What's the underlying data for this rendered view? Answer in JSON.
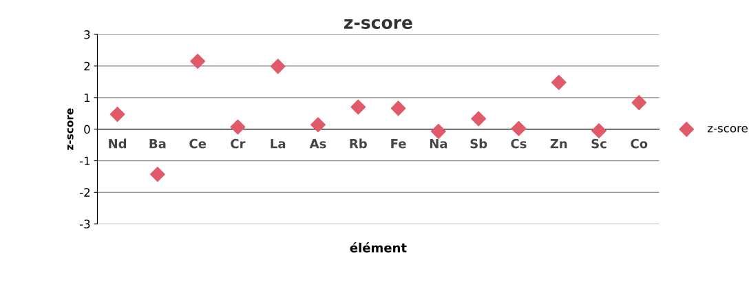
{
  "chart_data": {
    "type": "scatter",
    "title": "z-score",
    "xlabel": "élément",
    "ylabel": "z-score",
    "categories": [
      "Nd",
      "Ba",
      "Ce",
      "Cr",
      "La",
      "As",
      "Rb",
      "Fe",
      "Na",
      "Sb",
      "Cs",
      "Zn",
      "Sc",
      "Co"
    ],
    "series": [
      {
        "name": "z-score",
        "color": "#e05a6a",
        "values": [
          0.47,
          -1.43,
          2.15,
          0.07,
          1.99,
          0.14,
          0.7,
          0.66,
          -0.07,
          0.33,
          0.02,
          1.48,
          -0.05,
          0.84
        ]
      }
    ],
    "ylim": [
      -3,
      3
    ],
    "yticks": [
      -3,
      -2,
      -1,
      0,
      1,
      2,
      3
    ],
    "grid": "y",
    "legend": "right",
    "marker": "diamond"
  }
}
